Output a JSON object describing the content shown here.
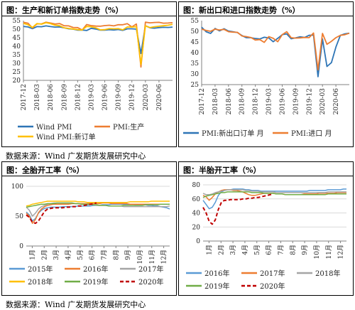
{
  "source_label": "数据来源：Wind  广发期货发展研究中心",
  "chart_data": [
    {
      "id": "p1",
      "type": "line",
      "title": "图：生产和新订单指数走势（%）",
      "x_ticks": [
        "2017-12",
        "2018-03",
        "2018-06",
        "2018-09",
        "2018-12",
        "2019-03",
        "2019-06",
        "2019-09",
        "2019-12",
        "2020-03",
        "2020-06"
      ],
      "ylim": [
        20,
        55
      ],
      "y_ticks": [
        20,
        25,
        30,
        35,
        40,
        45,
        50,
        55
      ],
      "grid": false,
      "series": [
        {
          "name": "Wind PMI",
          "color": "#2E75B6",
          "values": [
            51.6,
            51.3,
            50.3,
            51.5,
            51.4,
            51.9,
            51.5,
            51.2,
            51.3,
            50.8,
            50.2,
            50.0,
            49.4,
            49.5,
            49.2,
            50.5,
            50.1,
            49.4,
            49.4,
            49.7,
            49.5,
            49.8,
            49.3,
            50.2,
            50.2,
            50.0,
            35.7,
            52.0,
            50.8,
            50.6,
            50.9,
            51.1,
            51.0,
            51.2
          ]
        },
        {
          "name": "PMI:生产",
          "color": "#ED7D31",
          "values": [
            54.0,
            53.5,
            50.7,
            53.1,
            53.1,
            54.1,
            53.6,
            53.0,
            53.3,
            52.0,
            51.9,
            51.0,
            50.9,
            49.5,
            52.7,
            52.1,
            51.8,
            51.7,
            52.1,
            52.3,
            51.9,
            52.6,
            52.6,
            53.2,
            51.3,
            53.0,
            27.8,
            54.1,
            53.7,
            53.9,
            54.0,
            53.5,
            53.6,
            53.8
          ]
        },
        {
          "name": "Wind PMI:新订单",
          "color": "#FFC000",
          "values": [
            53.4,
            52.6,
            51.0,
            53.3,
            52.9,
            53.8,
            53.2,
            52.3,
            52.0,
            50.8,
            50.4,
            50.1,
            49.7,
            49.5,
            51.6,
            51.4,
            50.8,
            49.6,
            49.7,
            50.3,
            50.2,
            50.3,
            49.6,
            51.3,
            51.2,
            51.4,
            29.3,
            52.0,
            50.9,
            51.4,
            51.7,
            52.0,
            52.3,
            52.8
          ]
        }
      ]
    },
    {
      "id": "p2",
      "type": "line",
      "title": "图：新出口和进口指数走势（%）",
      "x_ticks": [
        "2017-12",
        "2018-03",
        "2018-06",
        "2018-09",
        "2018-12",
        "2019-03",
        "2019-06",
        "2019-09",
        "2019-12",
        "2020-03",
        "2020-06"
      ],
      "ylim": [
        25,
        55
      ],
      "y_ticks": [
        25,
        30,
        35,
        40,
        45,
        50,
        55
      ],
      "grid": false,
      "series": [
        {
          "name": "PMI:新出口订单  月",
          "color": "#2E75B6",
          "values": [
            51.9,
            49.8,
            49.0,
            51.3,
            50.2,
            51.2,
            50.1,
            49.8,
            49.4,
            48.0,
            47.0,
            47.0,
            46.6,
            46.4,
            47.2,
            46.9,
            45.1,
            46.7,
            48.4,
            48.8,
            46.5,
            46.9,
            47.4,
            47.1,
            48.1,
            48.2,
            28.7,
            46.4,
            33.5,
            35.3,
            42.6,
            48.1,
            48.8,
            49.1
          ]
        },
        {
          "name": "PMI:进口  月",
          "color": "#ED7D31",
          "values": [
            51.0,
            50.4,
            50.0,
            51.0,
            50.6,
            50.9,
            49.8,
            49.6,
            49.5,
            47.8,
            47.5,
            47.1,
            45.9,
            46.1,
            44.8,
            47.5,
            46.7,
            45.1,
            48.4,
            49.8,
            47.0,
            46.8,
            46.9,
            47.1,
            47.0,
            49.2,
            31.9,
            49.0,
            43.9,
            45.3,
            47.0,
            48.1,
            48.4,
            49.1
          ]
        }
      ]
    },
    {
      "id": "p3",
      "type": "line",
      "title": "图：全胎开工率（%）",
      "x_ticks": [
        "1月",
        "2月",
        "3月",
        "4月",
        "5月",
        "6月",
        "7月",
        "8月",
        "9月",
        "10月",
        "11月",
        "12月"
      ],
      "ylim": [
        0,
        100
      ],
      "y_ticks": [
        0,
        50,
        100
      ],
      "grid": true,
      "x_count": 48,
      "series": [
        {
          "name": "2015年",
          "color": "#5B9BD5",
          "dash": false,
          "values": [
            57,
            52,
            42,
            46,
            55,
            60,
            63,
            64,
            65,
            65,
            65,
            65,
            66,
            66,
            66,
            66,
            66,
            67,
            67,
            67,
            67,
            67,
            68,
            68,
            68,
            69,
            69,
            69,
            70,
            70,
            70,
            70,
            70,
            70,
            70,
            70,
            69,
            69,
            69,
            69,
            68,
            68,
            67,
            67,
            66,
            65,
            64,
            62
          ]
        },
        {
          "name": "2016年",
          "color": "#ED7D31",
          "dash": false,
          "values": [
            55,
            50,
            38,
            44,
            56,
            62,
            66,
            68,
            69,
            70,
            70,
            70,
            70,
            70,
            70,
            71,
            71,
            71,
            71,
            71,
            71,
            71,
            71,
            71,
            71,
            72,
            72,
            72,
            71,
            71,
            71,
            71,
            71,
            71,
            70,
            70,
            70,
            70,
            70,
            70,
            70,
            70,
            70,
            70,
            70,
            70,
            70,
            70
          ]
        },
        {
          "name": "2017年",
          "color": "#A5A5A5",
          "dash": false,
          "values": [
            65,
            60,
            50,
            55,
            62,
            66,
            68,
            70,
            71,
            72,
            72,
            72,
            72,
            72,
            72,
            72,
            71,
            71,
            70,
            70,
            69,
            69,
            69,
            68,
            68,
            68,
            68,
            67,
            67,
            67,
            67,
            67,
            66,
            66,
            66,
            66,
            66,
            66,
            66,
            66,
            66,
            66,
            66,
            66,
            66,
            66,
            66,
            67
          ]
        },
        {
          "name": "2018年",
          "color": "#FFC000",
          "dash": false,
          "values": [
            67,
            68,
            70,
            71,
            72,
            73,
            74,
            75,
            75,
            75,
            75,
            75,
            75,
            75,
            75,
            75,
            75,
            74,
            74,
            74,
            73,
            73,
            73,
            73,
            73,
            73,
            73,
            73,
            73,
            73,
            73,
            73,
            73,
            73,
            74,
            74,
            74,
            74,
            74,
            74,
            74,
            75,
            75,
            75,
            75,
            75,
            75,
            75
          ]
        },
        {
          "name": "2019年",
          "color": "#70AD47",
          "dash": false,
          "values": [
            65,
            66,
            67,
            68,
            69,
            70,
            70,
            71,
            71,
            71,
            72,
            72,
            72,
            72,
            72,
            72,
            71,
            71,
            70,
            70,
            70,
            70,
            69,
            69,
            68,
            68,
            68,
            67,
            67,
            67,
            67,
            67,
            68,
            68,
            68,
            68,
            68,
            68,
            68,
            69,
            69,
            69,
            69,
            69,
            70,
            70,
            70,
            70
          ]
        },
        {
          "name": "2020年",
          "color": "#C00000",
          "dash": true,
          "values": [
            52,
            48,
            40,
            38,
            42,
            50,
            58,
            62,
            63,
            64,
            64,
            64,
            64,
            65,
            65,
            66,
            66,
            67,
            67,
            68,
            69,
            70,
            71,
            72
          ]
        }
      ]
    },
    {
      "id": "p4",
      "type": "line",
      "title": "图：半胎开工率（%）",
      "x_ticks": [
        "1月",
        "2月",
        "3月",
        "4月",
        "5月",
        "6月",
        "7月",
        "8月",
        "9月",
        "10月",
        "11月",
        "12月"
      ],
      "ylim": [
        0,
        80
      ],
      "y_ticks": [
        0,
        20,
        40,
        60,
        80
      ],
      "grid": true,
      "x_count": 48,
      "series": [
        {
          "name": "2016年",
          "color": "#5B9BD5",
          "dash": false,
          "values": [
            58,
            52,
            46,
            48,
            55,
            65,
            70,
            72,
            73,
            73,
            74,
            74,
            74,
            74,
            73,
            73,
            72,
            72,
            72,
            71,
            71,
            71,
            71,
            71,
            71,
            71,
            71,
            71,
            71,
            71,
            71,
            71,
            71,
            71,
            71,
            72,
            72,
            72,
            72,
            72,
            72,
            73,
            73,
            73,
            73,
            73,
            74,
            74
          ]
        },
        {
          "name": "2017年",
          "color": "#ED7D31",
          "dash": false,
          "values": [
            65,
            63,
            58,
            62,
            67,
            70,
            72,
            73,
            73,
            73,
            72,
            72,
            71,
            70,
            68,
            66,
            65,
            65,
            66,
            67,
            68,
            68,
            68,
            68,
            67,
            67,
            67,
            66,
            66,
            66,
            66,
            66,
            66,
            67,
            67,
            67,
            67,
            67,
            68,
            68,
            68,
            68,
            68,
            68,
            69,
            69,
            69,
            69
          ]
        },
        {
          "name": "2018年",
          "color": "#A5A5A5",
          "dash": false,
          "values": [
            68,
            66,
            66,
            67,
            69,
            70,
            71,
            72,
            73,
            73,
            73,
            73,
            73,
            73,
            72,
            72,
            71,
            71,
            71,
            70,
            70,
            70,
            70,
            70,
            69,
            69,
            69,
            69,
            69,
            69,
            69,
            69,
            69,
            69,
            69,
            69,
            69,
            69,
            69,
            69,
            69,
            70,
            70,
            70,
            70,
            70,
            70,
            70
          ]
        },
        {
          "name": "2019年",
          "color": "#70AD47",
          "dash": false,
          "values": [
            62,
            64,
            65,
            66,
            67,
            68,
            69,
            69,
            70,
            70,
            70,
            70,
            70,
            70,
            70,
            70,
            69,
            69,
            69,
            69,
            68,
            68,
            68,
            68,
            67,
            67,
            67,
            66,
            66,
            66,
            66,
            66,
            66,
            66,
            66,
            66,
            66,
            66,
            66,
            66,
            66,
            67,
            67,
            67,
            67,
            67,
            67,
            67
          ]
        },
        {
          "name": "2020年",
          "color": "#C00000",
          "dash": true,
          "values": [
            48,
            40,
            28,
            24,
            30,
            45,
            55,
            58,
            58,
            59,
            59,
            59,
            59,
            60,
            60,
            61,
            61,
            62,
            62,
            63,
            64,
            65,
            66,
            67
          ]
        }
      ]
    }
  ]
}
